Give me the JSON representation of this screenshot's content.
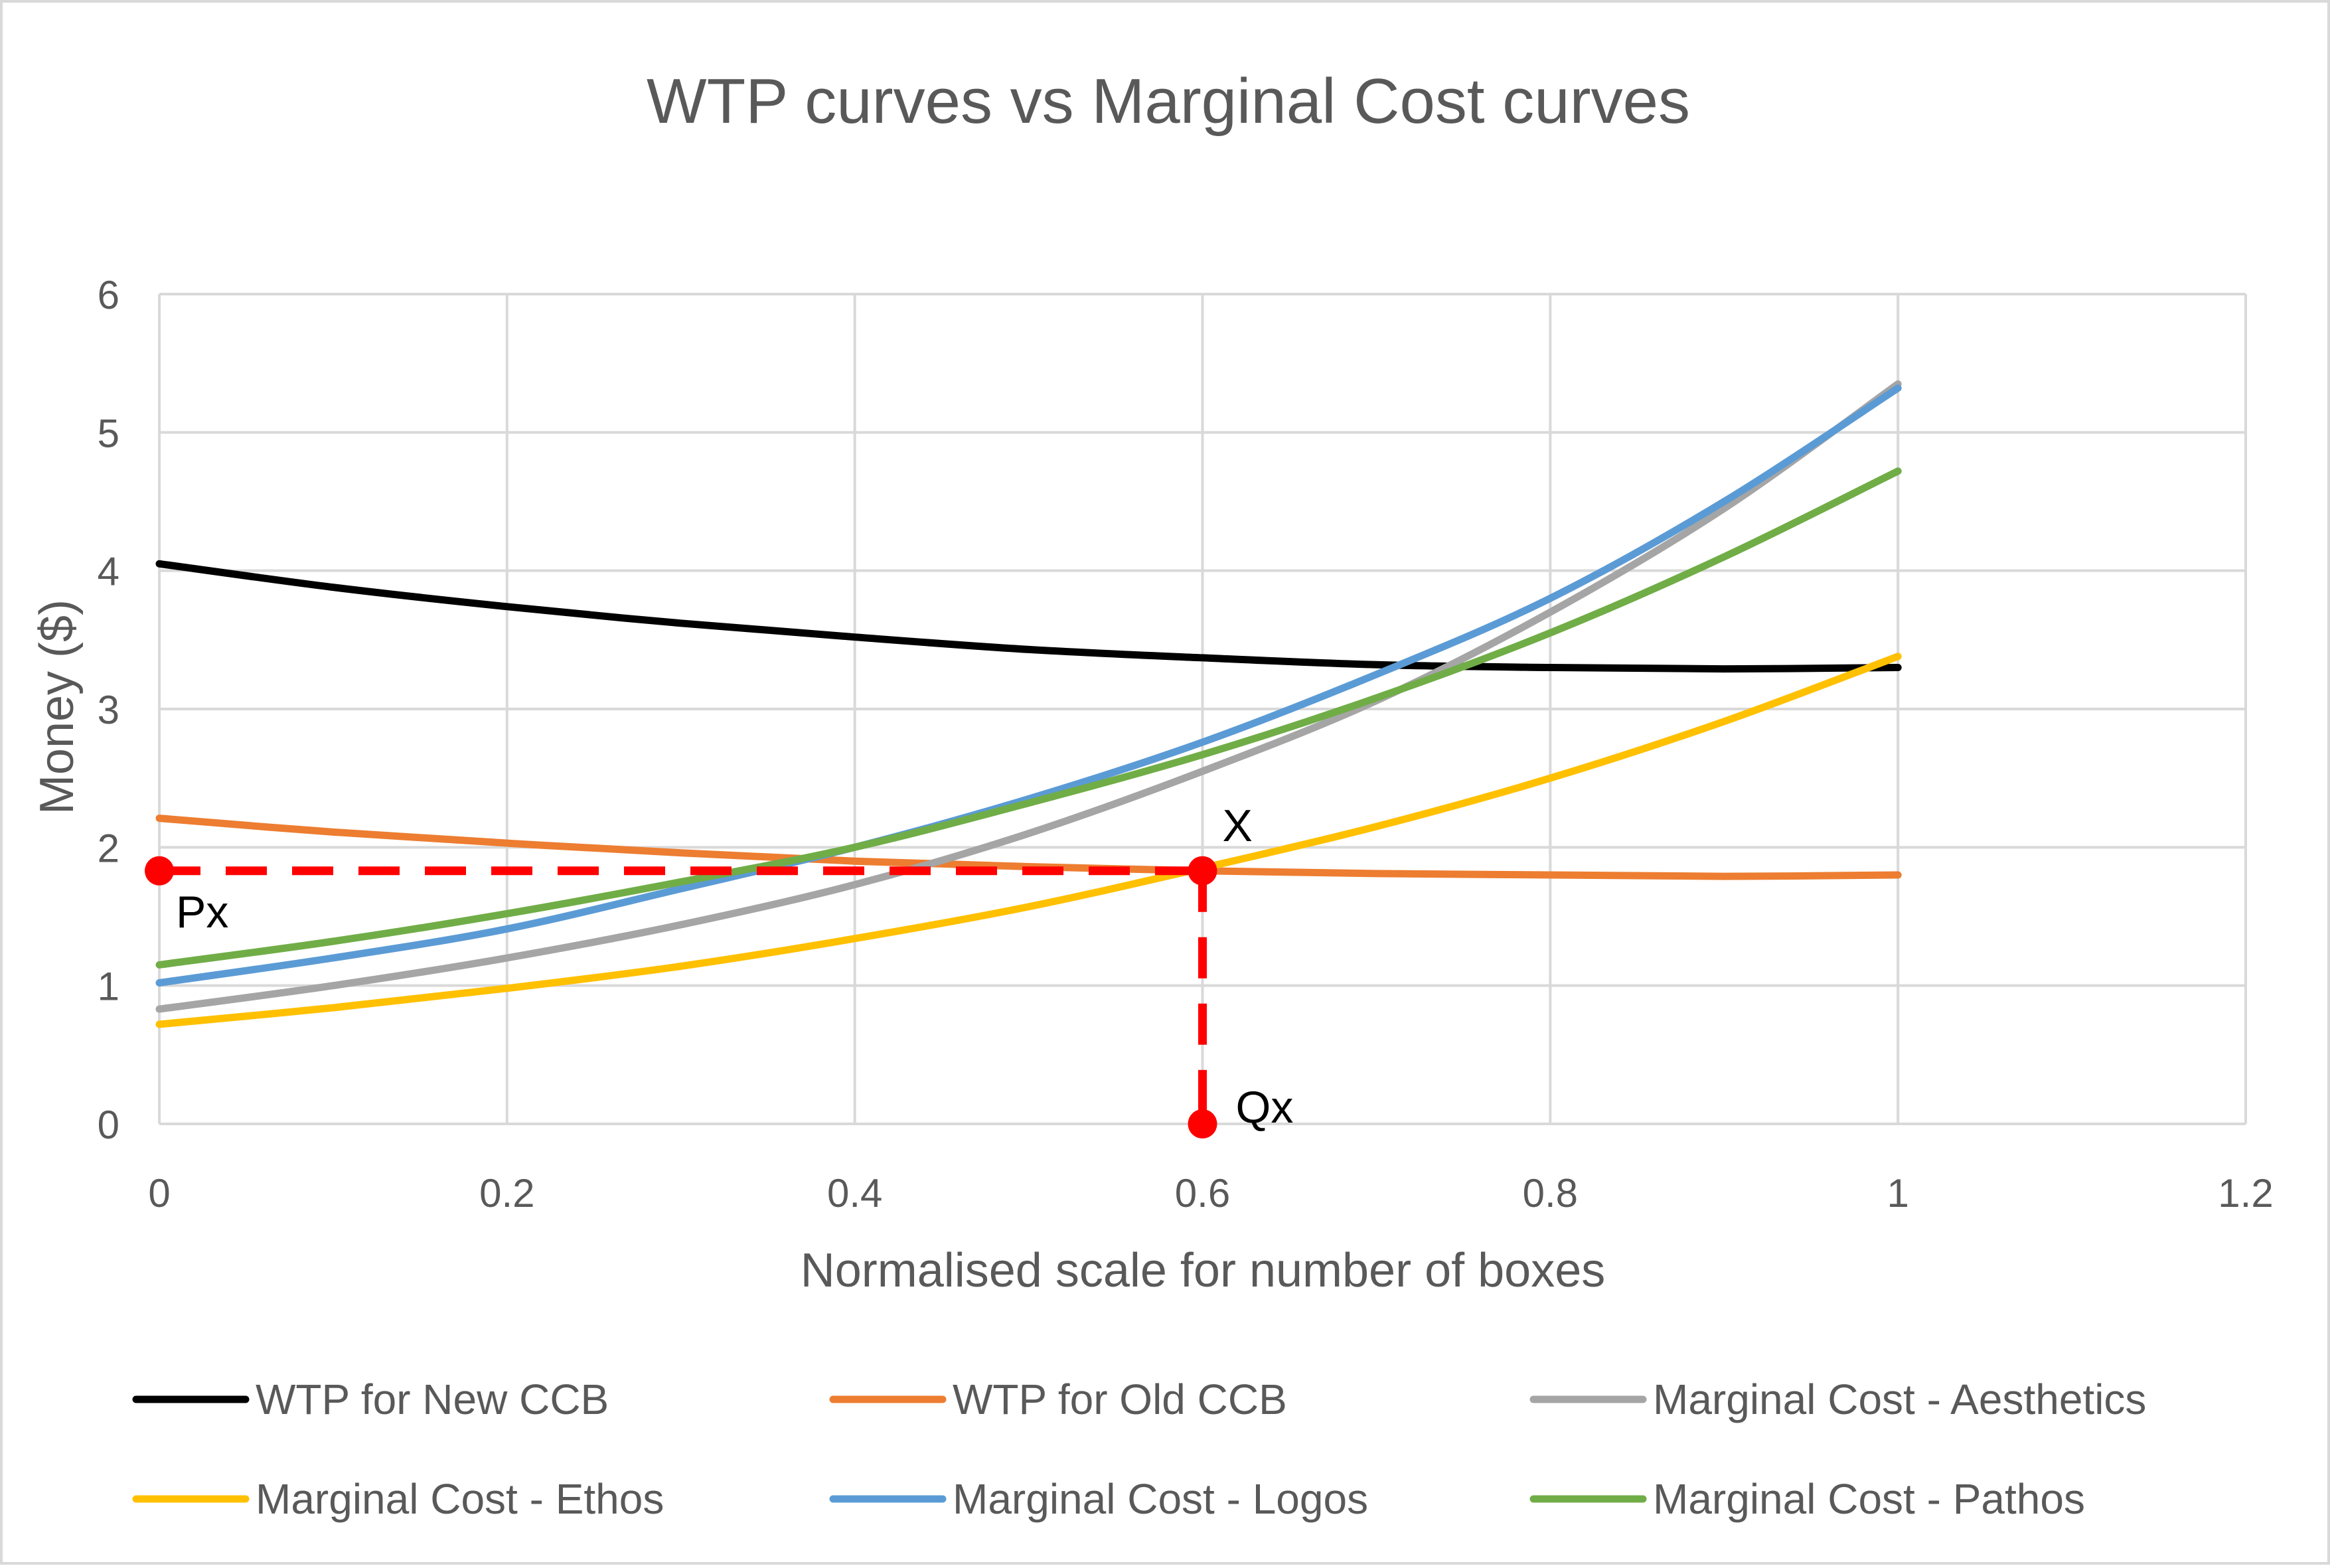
{
  "chart_data": {
    "type": "line",
    "title": "WTP curves vs Marginal Cost curves",
    "xlabel": "Normalised scale for number of boxes",
    "ylabel": "Money ($)",
    "xlim": [
      0,
      1.2
    ],
    "ylim": [
      0,
      6
    ],
    "x_ticks": [
      0,
      0.2,
      0.4,
      0.6,
      0.8,
      1,
      1.2
    ],
    "x_tick_labels": [
      "0",
      "0.2",
      "0.4",
      "0.6",
      "0.8",
      "1",
      "1.2"
    ],
    "y_ticks": [
      0,
      1,
      2,
      3,
      4,
      5,
      6
    ],
    "y_tick_labels": [
      "0",
      "1",
      "2",
      "3",
      "4",
      "5",
      "6"
    ],
    "grid": true,
    "legend_position": "bottom",
    "x": [
      0,
      0.1,
      0.2,
      0.3,
      0.4,
      0.5,
      0.6,
      0.7,
      0.8,
      0.9,
      1.0
    ],
    "series": [
      {
        "name": "WTP for New CCB",
        "color": "#000000",
        "values": [
          4.05,
          3.88,
          3.74,
          3.62,
          3.52,
          3.43,
          3.37,
          3.32,
          3.3,
          3.29,
          3.3
        ]
      },
      {
        "name": "WTP for Old CCB",
        "color": "#ED7D31",
        "values": [
          2.21,
          2.11,
          2.03,
          1.96,
          1.9,
          1.86,
          1.83,
          1.81,
          1.8,
          1.79,
          1.8
        ]
      },
      {
        "name": "Marginal Cost - Aesthetics",
        "color": "#A5A5A5",
        "values": [
          0.83,
          1.0,
          1.2,
          1.44,
          1.73,
          2.1,
          2.55,
          3.06,
          3.7,
          4.45,
          5.35
        ]
      },
      {
        "name": "Marginal Cost - Ethos",
        "color": "#FFC000",
        "values": [
          0.72,
          0.84,
          0.98,
          1.14,
          1.34,
          1.57,
          1.85,
          2.15,
          2.5,
          2.91,
          3.38
        ]
      },
      {
        "name": "Marginal Cost - Logos",
        "color": "#5B9BD5",
        "values": [
          1.02,
          1.2,
          1.41,
          1.7,
          2.0,
          2.35,
          2.76,
          3.25,
          3.8,
          4.5,
          5.32
        ]
      },
      {
        "name": "Marginal Cost - Pathos",
        "color": "#70AD47",
        "values": [
          1.15,
          1.32,
          1.52,
          1.75,
          2.0,
          2.32,
          2.67,
          3.08,
          3.55,
          4.1,
          4.72
        ]
      }
    ],
    "annotations": {
      "equilibrium": {
        "label": "X",
        "x": 0.6,
        "y": 1.83
      },
      "price": {
        "label": "Px",
        "x": 0,
        "y": 1.83
      },
      "quantity": {
        "label": "Qx",
        "x": 0.6,
        "y": 0
      },
      "color": "#FF0000"
    }
  }
}
